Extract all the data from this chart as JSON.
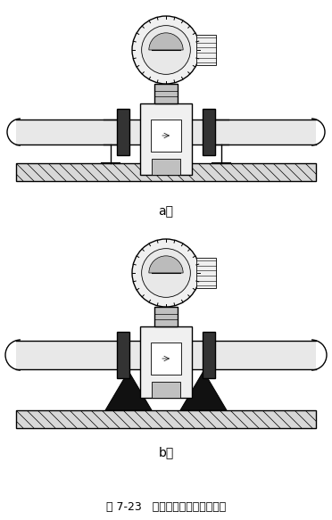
{
  "title": "图 7-23   管道振动时安装固定支架",
  "label_a": "a）",
  "label_b": "b）",
  "bg_color": "#ffffff",
  "lc": "#000000",
  "fill_white": "#ffffff",
  "fill_light": "#f0f0f0",
  "fill_mid": "#c0c0c0",
  "fill_dark": "#555555",
  "fill_black": "#111111",
  "pipe_fill": "#e8e8e8",
  "ground_fill": "#d8d8d8"
}
